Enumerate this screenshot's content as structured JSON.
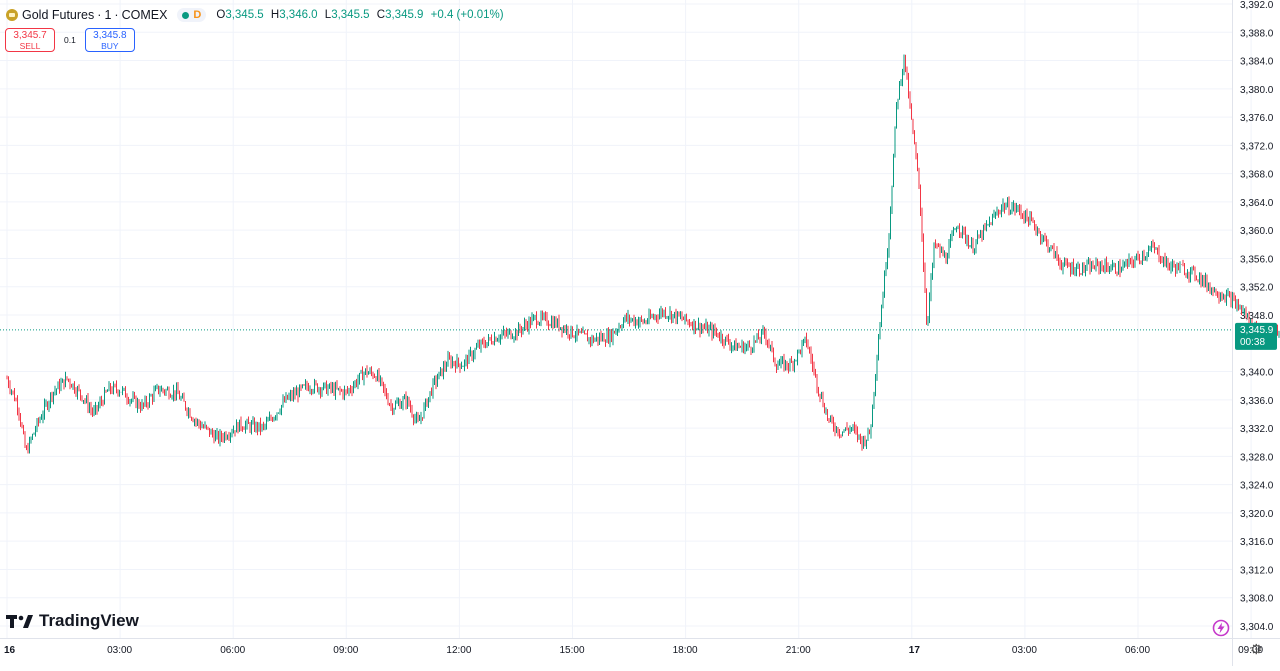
{
  "header": {
    "symbol": "Gold Futures",
    "interval": "1",
    "exchange": "COMEX",
    "timeframe_badge": "D",
    "ohlc": {
      "open_label": "O",
      "open": "3,345.5",
      "high_label": "H",
      "high": "3,346.0",
      "low_label": "L",
      "low": "3,345.5",
      "close_label": "C",
      "close": "3,345.9",
      "change": "+0.4 (+0.01%)"
    }
  },
  "trade": {
    "sell_price": "3,345.7",
    "sell_label": "SELL",
    "spread": "0.1",
    "buy_price": "3,345.8",
    "buy_label": "BUY"
  },
  "price_scale": {
    "last_price": "3,345.9",
    "countdown": "00:38"
  },
  "branding": {
    "logo_text": "TradingView"
  },
  "colors": {
    "up": "#089981",
    "down": "#f23645",
    "grid": "#f0f3fa",
    "last_price_bg": "#089981",
    "axis_text": "#131722"
  },
  "chart_data": {
    "type": "candlestick",
    "title": "",
    "y_ticks": [
      3392.0,
      3388.0,
      3384.0,
      3380.0,
      3376.0,
      3372.0,
      3368.0,
      3364.0,
      3360.0,
      3356.0,
      3352.0,
      3348.0,
      3340.0,
      3336.0,
      3332.0,
      3328.0,
      3324.0,
      3320.0,
      3316.0,
      3312.0,
      3308.0,
      3304.0
    ],
    "y_tick_labels": [
      "3,392.0",
      "3,388.0",
      "3,384.0",
      "3,380.0",
      "3,376.0",
      "3,372.0",
      "3,368.0",
      "3,364.0",
      "3,360.0",
      "3,356.0",
      "3,352.0",
      "3,348.0",
      "3,340.0",
      "3,336.0",
      "3,332.0",
      "3,328.0",
      "3,324.0",
      "3,320.0",
      "3,316.0",
      "3,312.0",
      "3,308.0",
      "3,304.0"
    ],
    "ylim": [
      3303.0,
      3392.5
    ],
    "x_ticks": [
      {
        "label": "16",
        "hour": 0
      },
      {
        "label": "03:00",
        "hour": 3
      },
      {
        "label": "06:00",
        "hour": 6
      },
      {
        "label": "09:00",
        "hour": 9
      },
      {
        "label": "12:00",
        "hour": 12
      },
      {
        "label": "15:00",
        "hour": 15
      },
      {
        "label": "18:00",
        "hour": 18
      },
      {
        "label": "21:00",
        "hour": 21
      },
      {
        "label": "17",
        "hour": 24
      },
      {
        "label": "03:00",
        "hour": 27
      },
      {
        "label": "06:00",
        "hour": 30
      },
      {
        "label": "09:00",
        "hour": 33
      }
    ],
    "x_range_hours": [
      0,
      34.7
    ],
    "last_price": 3345.9,
    "price_path": [
      {
        "hour": 0.0,
        "price": 3339.0
      },
      {
        "hour": 0.3,
        "price": 3335.0
      },
      {
        "hour": 0.5,
        "price": 3328.5
      },
      {
        "hour": 0.8,
        "price": 3332.5
      },
      {
        "hour": 1.2,
        "price": 3337.0
      },
      {
        "hour": 1.6,
        "price": 3339.0
      },
      {
        "hour": 2.0,
        "price": 3336.5
      },
      {
        "hour": 2.3,
        "price": 3334.0
      },
      {
        "hour": 2.7,
        "price": 3337.5
      },
      {
        "hour": 3.0,
        "price": 3337.5
      },
      {
        "hour": 3.3,
        "price": 3336.0
      },
      {
        "hour": 3.6,
        "price": 3335.0
      },
      {
        "hour": 4.0,
        "price": 3337.5
      },
      {
        "hour": 4.5,
        "price": 3337.0
      },
      {
        "hour": 5.0,
        "price": 3333.0
      },
      {
        "hour": 5.6,
        "price": 3330.5
      },
      {
        "hour": 6.2,
        "price": 3332.5
      },
      {
        "hour": 6.8,
        "price": 3332.0
      },
      {
        "hour": 7.4,
        "price": 3336.0
      },
      {
        "hour": 8.0,
        "price": 3338.0
      },
      {
        "hour": 8.6,
        "price": 3337.5
      },
      {
        "hour": 9.0,
        "price": 3337.0
      },
      {
        "hour": 9.5,
        "price": 3340.0
      },
      {
        "hour": 9.8,
        "price": 3339.5
      },
      {
        "hour": 10.2,
        "price": 3335.0
      },
      {
        "hour": 10.6,
        "price": 3336.0
      },
      {
        "hour": 10.9,
        "price": 3332.5
      },
      {
        "hour": 11.3,
        "price": 3338.0
      },
      {
        "hour": 11.7,
        "price": 3341.5
      },
      {
        "hour": 12.1,
        "price": 3341.0
      },
      {
        "hour": 12.5,
        "price": 3343.5
      },
      {
        "hour": 13.0,
        "price": 3345.0
      },
      {
        "hour": 13.5,
        "price": 3345.5
      },
      {
        "hour": 14.0,
        "price": 3347.5
      },
      {
        "hour": 14.5,
        "price": 3347.0
      },
      {
        "hour": 15.0,
        "price": 3345.5
      },
      {
        "hour": 15.5,
        "price": 3344.5
      },
      {
        "hour": 16.0,
        "price": 3345.0
      },
      {
        "hour": 16.4,
        "price": 3347.5
      },
      {
        "hour": 16.9,
        "price": 3347.0
      },
      {
        "hour": 17.4,
        "price": 3348.5
      },
      {
        "hour": 17.9,
        "price": 3347.5
      },
      {
        "hour": 18.3,
        "price": 3346.5
      },
      {
        "hour": 18.8,
        "price": 3345.5
      },
      {
        "hour": 19.3,
        "price": 3343.5
      },
      {
        "hour": 19.7,
        "price": 3343.5
      },
      {
        "hour": 20.1,
        "price": 3345.5
      },
      {
        "hour": 20.4,
        "price": 3341.0
      },
      {
        "hour": 20.8,
        "price": 3341.0
      },
      {
        "hour": 21.2,
        "price": 3344.5
      },
      {
        "hour": 21.5,
        "price": 3338.0
      },
      {
        "hour": 21.8,
        "price": 3333.0
      },
      {
        "hour": 22.1,
        "price": 3331.5
      },
      {
        "hour": 22.4,
        "price": 3332.0
      },
      {
        "hour": 22.7,
        "price": 3330.0
      },
      {
        "hour": 22.9,
        "price": 3331.5
      },
      {
        "hour": 23.1,
        "price": 3344.0
      },
      {
        "hour": 23.4,
        "price": 3360.0
      },
      {
        "hour": 23.6,
        "price": 3378.0
      },
      {
        "hour": 23.8,
        "price": 3384.5
      },
      {
        "hour": 24.0,
        "price": 3375.0
      },
      {
        "hour": 24.2,
        "price": 3366.0
      },
      {
        "hour": 24.4,
        "price": 3346.5
      },
      {
        "hour": 24.6,
        "price": 3358.0
      },
      {
        "hour": 24.9,
        "price": 3356.0
      },
      {
        "hour": 25.2,
        "price": 3361.0
      },
      {
        "hour": 25.6,
        "price": 3357.5
      },
      {
        "hour": 26.0,
        "price": 3360.5
      },
      {
        "hour": 26.4,
        "price": 3363.5
      },
      {
        "hour": 26.8,
        "price": 3363.0
      },
      {
        "hour": 27.2,
        "price": 3361.0
      },
      {
        "hour": 27.6,
        "price": 3358.0
      },
      {
        "hour": 28.0,
        "price": 3355.0
      },
      {
        "hour": 28.5,
        "price": 3354.5
      },
      {
        "hour": 29.0,
        "price": 3355.0
      },
      {
        "hour": 29.5,
        "price": 3354.5
      },
      {
        "hour": 30.0,
        "price": 3356.0
      },
      {
        "hour": 30.4,
        "price": 3357.5
      },
      {
        "hour": 30.8,
        "price": 3355.0
      },
      {
        "hour": 31.2,
        "price": 3354.5
      },
      {
        "hour": 31.6,
        "price": 3353.5
      },
      {
        "hour": 32.0,
        "price": 3351.5
      },
      {
        "hour": 32.4,
        "price": 3350.5
      },
      {
        "hour": 32.8,
        "price": 3348.5
      },
      {
        "hour": 33.1,
        "price": 3346.0
      },
      {
        "hour": 33.4,
        "price": 3344.5
      },
      {
        "hour": 33.7,
        "price": 3345.5
      },
      {
        "hour": 34.0,
        "price": 3346.5
      },
      {
        "hour": 34.2,
        "price": 3349.5
      },
      {
        "hour": 34.4,
        "price": 3348.0
      },
      {
        "hour": 34.6,
        "price": 3345.9
      }
    ]
  }
}
